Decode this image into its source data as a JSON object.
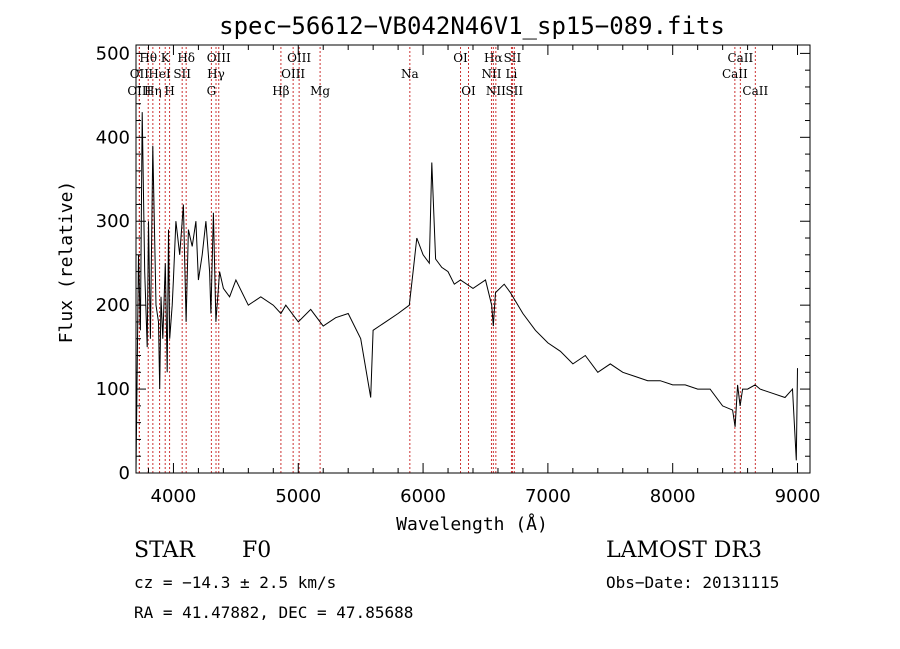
{
  "chart_data": {
    "type": "line",
    "title": "spec−56612−VB042N46V1_sp15−089.fits",
    "xlabel": "Wavelength (Å)",
    "ylabel": "Flux (relative)",
    "xlim": [
      3700,
      9100
    ],
    "ylim": [
      0,
      510
    ],
    "xticks": [
      4000,
      5000,
      6000,
      7000,
      8000,
      9000
    ],
    "yticks": [
      0,
      100,
      200,
      300,
      400,
      500
    ],
    "xtick_labels": [
      "4000",
      "5000",
      "6000",
      "7000",
      "8000",
      "9000"
    ],
    "ytick_labels": [
      "0",
      "100",
      "200",
      "300",
      "400",
      "500"
    ],
    "line_color": "#000000",
    "marker_color": "#cc3333",
    "spectrum": {
      "x": [
        3700,
        3720,
        3735,
        3750,
        3770,
        3790,
        3800,
        3815,
        3835,
        3860,
        3880,
        3890,
        3900,
        3915,
        3935,
        3950,
        3960,
        3970,
        3990,
        4000,
        4020,
        4050,
        4080,
        4101,
        4120,
        4150,
        4180,
        4200,
        4230,
        4260,
        4290,
        4300,
        4320,
        4340,
        4370,
        4400,
        4450,
        4500,
        4600,
        4700,
        4800,
        4861,
        4900,
        5000,
        5100,
        5200,
        5300,
        5400,
        5500,
        5580,
        5600,
        5700,
        5800,
        5890,
        5920,
        5950,
        6000,
        6050,
        6070,
        6100,
        6150,
        6200,
        6250,
        6300,
        6400,
        6500,
        6550,
        6563,
        6580,
        6650,
        6700,
        6800,
        6900,
        7000,
        7100,
        7200,
        7300,
        7400,
        7500,
        7600,
        7700,
        7800,
        7900,
        8000,
        8100,
        8200,
        8300,
        8400,
        8480,
        8500,
        8520,
        8540,
        8560,
        8600,
        8660,
        8700,
        8800,
        8900,
        8960,
        8990,
        9000
      ],
      "y": [
        0,
        260,
        170,
        430,
        240,
        150,
        300,
        160,
        390,
        200,
        180,
        100,
        210,
        160,
        250,
        120,
        290,
        160,
        200,
        230,
        300,
        260,
        320,
        180,
        290,
        270,
        300,
        230,
        260,
        300,
        240,
        190,
        310,
        180,
        240,
        220,
        210,
        230,
        200,
        210,
        200,
        190,
        200,
        180,
        195,
        175,
        185,
        190,
        160,
        90,
        170,
        180,
        190,
        200,
        240,
        280,
        260,
        250,
        370,
        255,
        245,
        240,
        225,
        230,
        220,
        230,
        200,
        175,
        215,
        225,
        215,
        190,
        170,
        155,
        145,
        130,
        140,
        120,
        130,
        120,
        115,
        110,
        110,
        105,
        105,
        100,
        100,
        80,
        75,
        55,
        105,
        80,
        100,
        100,
        105,
        100,
        95,
        90,
        100,
        15,
        125
      ]
    },
    "line_markers": [
      {
        "label": "Hθ",
        "x": 3798,
        "row": 1
      },
      {
        "label": "OII",
        "x": 3727,
        "row": 2
      },
      {
        "label": "OIII",
        "x": 3727,
        "row": 3
      },
      {
        "label": "Hη",
        "x": 3835,
        "row": 3
      },
      {
        "label": "HeI",
        "x": 3889,
        "row": 2
      },
      {
        "label": "K",
        "x": 3934,
        "row": 1
      },
      {
        "label": "SII",
        "x": 4070,
        "row": 2
      },
      {
        "label": "H",
        "x": 3969,
        "row": 3
      },
      {
        "label": "Hδ",
        "x": 4102,
        "row": 1
      },
      {
        "label": "OIII",
        "x": 4363,
        "row": 1
      },
      {
        "label": "Hγ",
        "x": 4341,
        "row": 2
      },
      {
        "label": "G",
        "x": 4304,
        "row": 3
      },
      {
        "label": "Hβ",
        "x": 4861,
        "row": 3
      },
      {
        "label": "OIII",
        "x": 5007,
        "row": 1
      },
      {
        "label": "OIII",
        "x": 4959,
        "row": 2
      },
      {
        "label": "Mg",
        "x": 5175,
        "row": 3
      },
      {
        "label": "Na",
        "x": 5894,
        "row": 2
      },
      {
        "label": "OI",
        "x": 6300,
        "row": 1
      },
      {
        "label": "OI",
        "x": 6364,
        "row": 3
      },
      {
        "label": "Hα",
        "x": 6563,
        "row": 1
      },
      {
        "label": "NII",
        "x": 6548,
        "row": 2
      },
      {
        "label": "NII",
        "x": 6583,
        "row": 3
      },
      {
        "label": "SII",
        "x": 6716,
        "row": 1
      },
      {
        "label": "Li",
        "x": 6708,
        "row": 2
      },
      {
        "label": "SII",
        "x": 6731,
        "row": 3
      },
      {
        "label": "CaII",
        "x": 8542,
        "row": 1
      },
      {
        "label": "CaII",
        "x": 8498,
        "row": 2
      },
      {
        "label": "CaII",
        "x": 8662,
        "row": 3
      }
    ]
  },
  "info": {
    "class": "STAR",
    "subclass": "F0",
    "survey": "LAMOST DR3",
    "cz": "cz = −14.3 ± 2.5 km/s",
    "obs_date": "Obs−Date: 20131115",
    "coords": "RA =  41.47882, DEC =  47.85688"
  }
}
